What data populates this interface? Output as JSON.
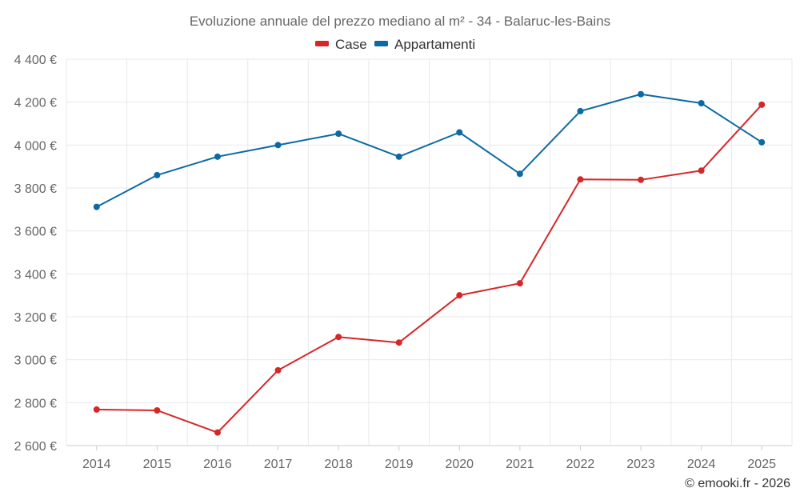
{
  "chart_data": {
    "type": "line",
    "title": "Evoluzione annuale del prezzo mediano al m² - 34 - Balaruc-les-Bains",
    "categories": [
      "2014",
      "2015",
      "2016",
      "2017",
      "2018",
      "2019",
      "2020",
      "2021",
      "2022",
      "2023",
      "2024",
      "2025"
    ],
    "series": [
      {
        "name": "Case",
        "color": "#d62728",
        "values": [
          2768,
          2764,
          2661,
          2951,
          3106,
          3080,
          3300,
          3356,
          3840,
          3838,
          3881,
          4188
        ]
      },
      {
        "name": "Appartamenti",
        "color": "#0b6aa2",
        "values": [
          3712,
          3860,
          3946,
          4000,
          4053,
          3946,
          4059,
          3866,
          4158,
          4237,
          4195,
          4013
        ]
      }
    ],
    "ylim": [
      2600,
      4400
    ],
    "yticks": [
      2600,
      2800,
      3000,
      3200,
      3400,
      3600,
      3800,
      4000,
      4200,
      4400
    ],
    "ytick_labels": [
      "2 600 €",
      "2 800 €",
      "3 000 €",
      "3 200 €",
      "3 400 €",
      "3 600 €",
      "3 800 €",
      "4 000 €",
      "4 200 €",
      "4 400 €"
    ],
    "xlabel": "",
    "ylabel": "",
    "legend": "top-center",
    "grid": true
  },
  "credit": "© emooki.fr - 2026"
}
